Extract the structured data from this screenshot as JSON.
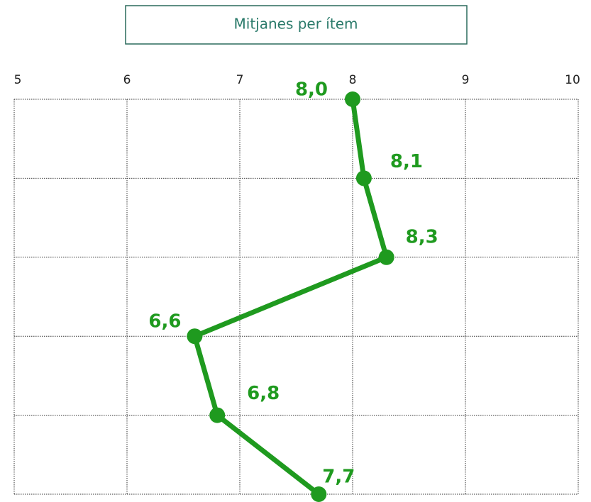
{
  "chart_data": {
    "type": "line",
    "orientation": "horizontal",
    "title": "Mitjanes per ítem",
    "categories": [
      null,
      null,
      null,
      null,
      null,
      null
    ],
    "values": [
      8.0,
      8.1,
      8.3,
      6.6,
      6.8,
      7.7
    ],
    "value_labels": [
      "8,0",
      "8,1",
      "8,3",
      "6,6",
      "6,8",
      "7,7"
    ],
    "color": "#1f9a1f",
    "xlim": [
      5,
      10
    ],
    "xticks": [
      5,
      6,
      7,
      8,
      9,
      10
    ],
    "grid": true
  }
}
